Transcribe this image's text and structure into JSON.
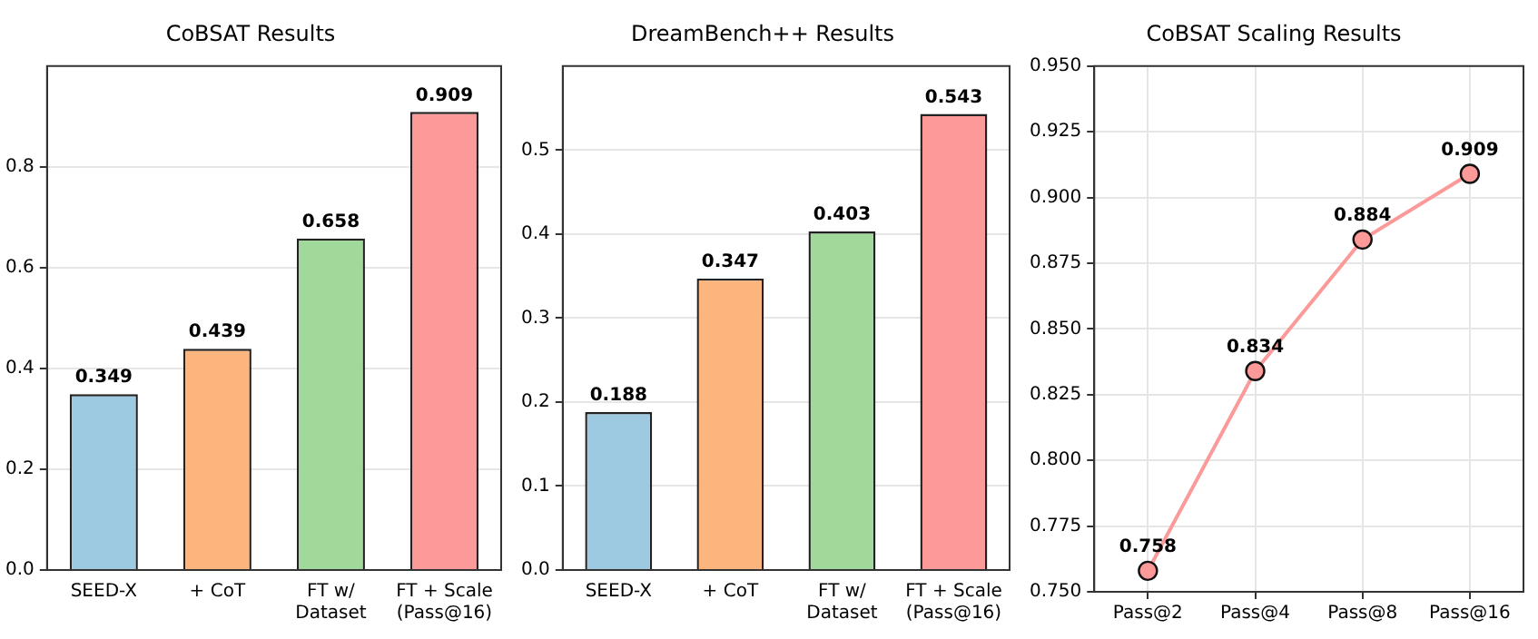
{
  "chart_data": [
    {
      "type": "bar",
      "title": "CoBSAT Results",
      "categories": [
        "SEED-X",
        "+ CoT",
        "FT w/\nDataset",
        "FT + Scale\n(Pass@16)"
      ],
      "values": [
        0.349,
        0.439,
        0.658,
        0.909
      ],
      "colors": [
        "#9ecae1",
        "#fdb57e",
        "#a1d99b",
        "#fb9a99"
      ],
      "ylim": [
        0,
        1.0
      ],
      "yticks": [
        {
          "value": 0,
          "label": "0.0"
        },
        0.2,
        0.4,
        0.6,
        0.8
      ],
      "grid": "y",
      "data_labels": true
    },
    {
      "type": "bar",
      "title": "DreamBench++ Results",
      "categories": [
        "SEED-X",
        "+ CoT",
        "FT w/\nDataset",
        "FT + Scale\n(Pass@16)"
      ],
      "values": [
        0.188,
        0.347,
        0.403,
        0.543
      ],
      "colors": [
        "#9ecae1",
        "#fdb57e",
        "#a1d99b",
        "#fb9a99"
      ],
      "ylim": [
        0,
        0.6
      ],
      "yticks": [
        {
          "value": 0,
          "label": "0.0"
        },
        0.1,
        0.2,
        0.3,
        0.4,
        0.5
      ],
      "grid": "y",
      "data_labels": true
    },
    {
      "type": "line",
      "title": "CoBSAT Scaling Results",
      "categories": [
        "Pass@2",
        "Pass@4",
        "Pass@8",
        "Pass@16"
      ],
      "values": [
        0.758,
        0.834,
        0.884,
        0.909
      ],
      "color": "#fb9a99",
      "ylim": [
        0.75,
        0.95
      ],
      "yticks": [
        {
          "value": 0.75,
          "label": "0.750"
        },
        0.775,
        {
          "value": 0.8,
          "label": "0.800"
        },
        0.825,
        {
          "value": 0.85,
          "label": "0.850"
        },
        0.875,
        {
          "value": 0.9,
          "label": "0.900"
        },
        0.925,
        {
          "value": 0.95,
          "label": "0.950"
        }
      ],
      "grid": true,
      "marker": "circle",
      "line_style": "solid",
      "data_labels": true
    }
  ]
}
